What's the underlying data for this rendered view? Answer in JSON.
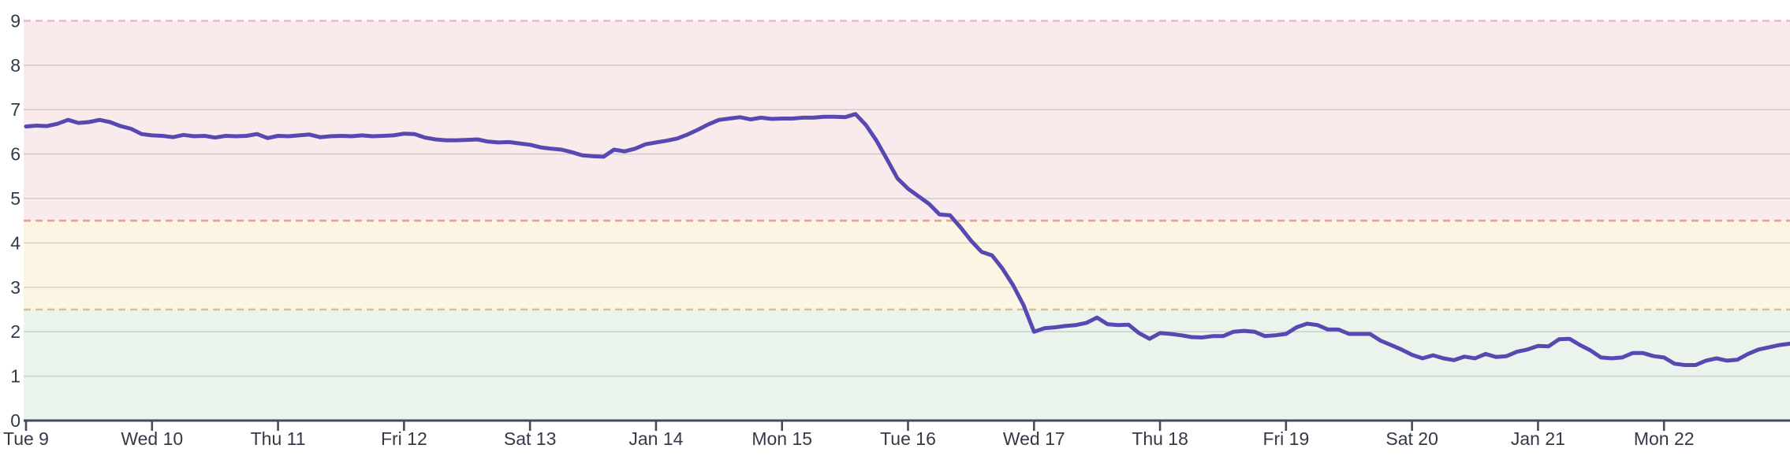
{
  "chart_data": {
    "type": "line",
    "title": "",
    "x_axis": {
      "tick_labels": [
        "Tue 9",
        "Wed 10",
        "Thu 11",
        "Fri 12",
        "Sat 13",
        "Jan 14",
        "Mon 15",
        "Tue 16",
        "Wed 17",
        "Thu 18",
        "Fri 19",
        "Sat 20",
        "Jan 21",
        "Mon 22"
      ],
      "points_per_day": 12,
      "grid": false
    },
    "y_axis": {
      "min": 0,
      "max": 9,
      "tick_labels": [
        "0",
        "1",
        "2",
        "3",
        "4",
        "5",
        "6",
        "7",
        "8",
        "9"
      ],
      "grid": true
    },
    "bands": [
      {
        "name": "red-zone",
        "from": 4.5,
        "to": 9,
        "color": "#f9eaec"
      },
      {
        "name": "yellow-zone",
        "from": 2.5,
        "to": 4.5,
        "color": "#fcf5e3"
      },
      {
        "name": "green-zone",
        "from": 0,
        "to": 2.5,
        "color": "#ebf4ec"
      }
    ],
    "thresholds": [
      {
        "value": 9,
        "color": "#f1babf",
        "style": "dashed"
      },
      {
        "value": 4.5,
        "color": "#eaa28e",
        "style": "dashed"
      },
      {
        "value": 2.5,
        "color": "#d2c292",
        "style": "dashed"
      }
    ],
    "series": [
      {
        "name": "value",
        "color": "#5749b1",
        "values": [
          6.62,
          6.64,
          6.63,
          6.68,
          6.77,
          6.7,
          6.72,
          6.77,
          6.72,
          6.63,
          6.57,
          6.45,
          6.42,
          6.41,
          6.38,
          6.43,
          6.4,
          6.41,
          6.37,
          6.41,
          6.4,
          6.41,
          6.45,
          6.36,
          6.41,
          6.4,
          6.42,
          6.44,
          6.38,
          6.4,
          6.41,
          6.4,
          6.42,
          6.4,
          6.41,
          6.42,
          6.46,
          6.45,
          6.37,
          6.33,
          6.31,
          6.31,
          6.32,
          6.33,
          6.28,
          6.26,
          6.27,
          6.24,
          6.21,
          6.15,
          6.12,
          6.1,
          6.04,
          5.97,
          5.95,
          5.94,
          6.1,
          6.06,
          6.12,
          6.22,
          6.26,
          6.3,
          6.35,
          6.44,
          6.55,
          6.67,
          6.77,
          6.8,
          6.83,
          6.78,
          6.82,
          6.79,
          6.8,
          6.8,
          6.82,
          6.82,
          6.84,
          6.84,
          6.83,
          6.9,
          6.65,
          6.3,
          5.88,
          5.45,
          5.22,
          5.05,
          4.88,
          4.64,
          4.62,
          4.35,
          4.05,
          3.8,
          3.72,
          3.42,
          3.05,
          2.6,
          2.0,
          2.08,
          2.1,
          2.13,
          2.15,
          2.2,
          2.32,
          2.17,
          2.15,
          2.16,
          1.97,
          1.84,
          1.97,
          1.95,
          1.92,
          1.88,
          1.87,
          1.9,
          1.9,
          2.0,
          2.02,
          2.0,
          1.9,
          1.92,
          1.95,
          2.1,
          2.18,
          2.15,
          2.05,
          2.05,
          1.95,
          1.95,
          1.95,
          1.8,
          1.7,
          1.6,
          1.48,
          1.4,
          1.47,
          1.4,
          1.36,
          1.44,
          1.4,
          1.5,
          1.43,
          1.45,
          1.55,
          1.6,
          1.68,
          1.67,
          1.83,
          1.84,
          1.7,
          1.58,
          1.42,
          1.4,
          1.42,
          1.52,
          1.52,
          1.45,
          1.42,
          1.28,
          1.25,
          1.25,
          1.35,
          1.4,
          1.35,
          1.37,
          1.5,
          1.6,
          1.65,
          1.7,
          1.73
        ]
      }
    ],
    "colors": {
      "axis": "#454b5e",
      "labels": "#333a47",
      "grid": "rgba(100,90,90,0.22)"
    }
  }
}
